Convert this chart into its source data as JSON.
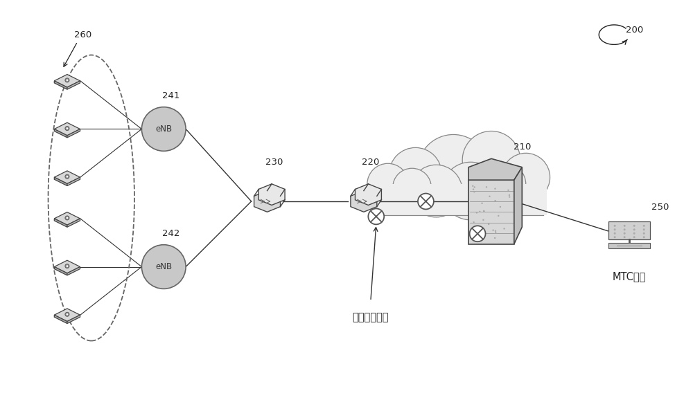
{
  "bg_color": "#ffffff",
  "label_200": "200",
  "label_260": "260",
  "label_241": "241",
  "label_242": "242",
  "label_230": "230",
  "label_220": "220",
  "label_210": "210",
  "label_250": "250",
  "label_congestion": "核心网络拥塞",
  "label_mtc": "MTC用户",
  "text_color": "#222222",
  "line_color": "#333333",
  "enb_fill": "#c8c8c8",
  "enb_edge": "#666666",
  "cloud_fill": "#eeeeee",
  "cloud_edge": "#888888",
  "device_face": "#cccccc",
  "device_edge": "#444444",
  "router_face": "#d8d8d8",
  "router_edge": "#444444",
  "cross_fill": "#ffffff",
  "cross_edge": "#555555"
}
